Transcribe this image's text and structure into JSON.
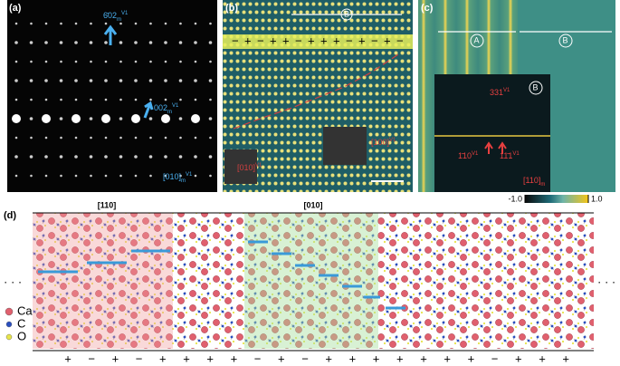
{
  "panel_a": {
    "label": "(a)",
    "spots": [
      {
        "hkl": "6̄02",
        "sub": "m",
        "sup": "V1"
      },
      {
        "hkl": "002",
        "sub": "m",
        "sup": "V1"
      }
    ],
    "zone": {
      "hkl": "[010]",
      "sub": "m",
      "sup": "V1"
    }
  },
  "panel_b": {
    "label": "(b)",
    "marker": "B",
    "signs": [
      "−",
      "+",
      "−",
      "+",
      "+",
      "−",
      "+",
      "+",
      "+",
      "−",
      "+",
      "−",
      "+",
      "−"
    ],
    "insets": [
      {
        "hkl": "[010]",
        "sup": "V1"
      },
      {
        "hkl": "[100]",
        "sup": "V1"
      }
    ]
  },
  "panel_c": {
    "label": "(c)",
    "regions": [
      "A",
      "B"
    ],
    "inset_marker": "B",
    "spots": [
      {
        "hkl": "331",
        "sup": "V1"
      },
      {
        "hkl": "1̄10",
        "sup": "V1"
      },
      {
        "hkl": "11̄1",
        "sup": "V1"
      }
    ],
    "zone": {
      "hkl": "[110]",
      "sub": "m"
    },
    "colorbar": [
      {
        "value": -1,
        "label": "-1.0"
      },
      {
        "value": 1,
        "label": "1.0"
      }
    ]
  },
  "panel_d": {
    "label": "(d)",
    "directions": [
      "[110]",
      "[010]"
    ],
    "legend": [
      "Ca",
      "C",
      "O"
    ],
    "signs": [
      "+",
      "−",
      "+",
      "−",
      "+",
      "+",
      "+",
      "+",
      "−",
      "+",
      "−",
      "+",
      "+",
      "+",
      "+",
      "+",
      "+",
      "+",
      "−",
      "+",
      "+",
      "+"
    ]
  }
}
